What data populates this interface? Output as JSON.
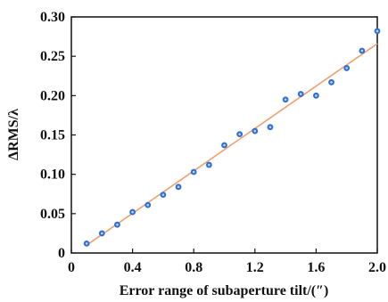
{
  "chart_data": {
    "type": "scatter",
    "xlabel": "Error range of subaperture tilt/(″)",
    "ylabel": "ΔRMS/λ",
    "xlim": [
      0,
      2.0
    ],
    "ylim": [
      0,
      0.3
    ],
    "x_ticks": [
      "0",
      "0.4",
      "0.8",
      "1.2",
      "1.6",
      "2.0"
    ],
    "y_ticks": [
      "0",
      "0.05",
      "0.10",
      "0.15",
      "0.20",
      "0.25",
      "0.30"
    ],
    "grid": false,
    "series": [
      {
        "kind": "points",
        "color": "#2f6fd1",
        "x": [
          0.1,
          0.2,
          0.3,
          0.4,
          0.5,
          0.6,
          0.7,
          0.8,
          0.9,
          1.0,
          1.1,
          1.2,
          1.3,
          1.4,
          1.5,
          1.6,
          1.7,
          1.8,
          1.9,
          2.0
        ],
        "y": [
          0.012,
          0.025,
          0.036,
          0.052,
          0.061,
          0.074,
          0.084,
          0.103,
          0.112,
          0.137,
          0.151,
          0.155,
          0.16,
          0.195,
          0.202,
          0.2,
          0.217,
          0.235,
          0.257,
          0.282
        ]
      },
      {
        "kind": "fit-line",
        "color": "#f0a070",
        "x": [
          0.1,
          2.0
        ],
        "y": [
          0.01,
          0.266
        ]
      }
    ]
  }
}
